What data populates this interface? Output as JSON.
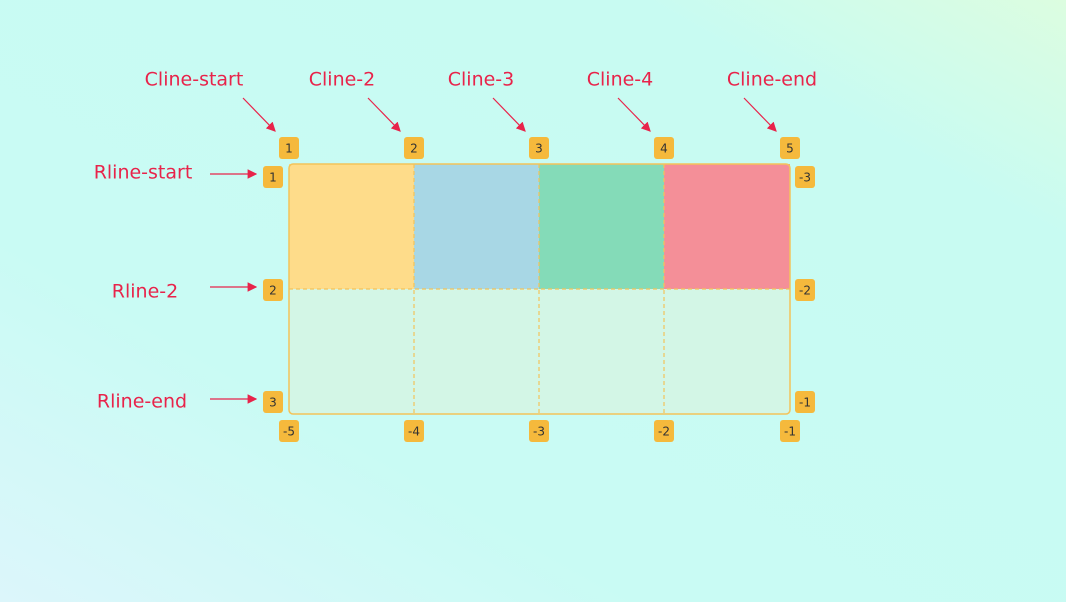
{
  "column_lines": [
    {
      "name": "Cline-start",
      "number": 1,
      "negative": -5
    },
    {
      "name": "Cline-2",
      "number": 2,
      "negative": -4
    },
    {
      "name": "Cline-3",
      "number": 3,
      "negative": -3
    },
    {
      "name": "Cline-4",
      "number": 4,
      "negative": -2
    },
    {
      "name": "Cline-end",
      "number": 5,
      "negative": -1
    }
  ],
  "row_lines": [
    {
      "name": "Rline-start",
      "number": 1,
      "negative": -3
    },
    {
      "name": "Rline-2",
      "number": 2,
      "negative": -2
    },
    {
      "name": "Rline-end",
      "number": 3,
      "negative": -1
    }
  ]
}
